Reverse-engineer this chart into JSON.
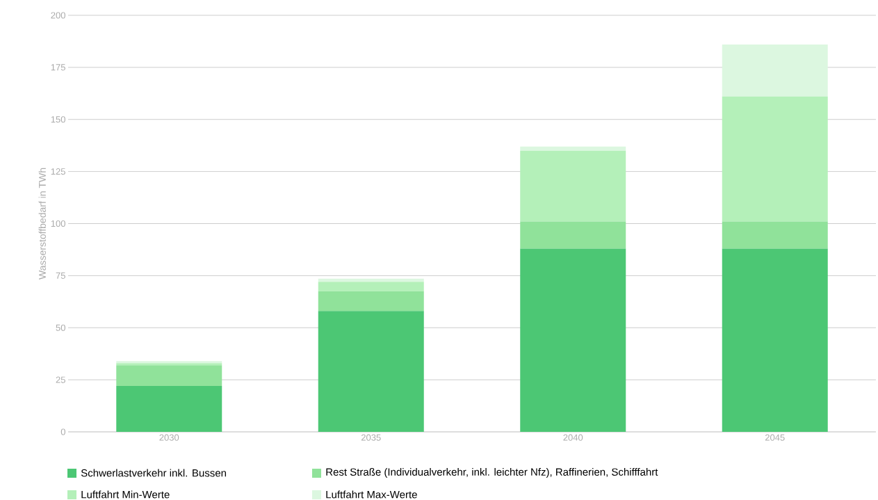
{
  "chart_data": {
    "type": "bar",
    "stacked": true,
    "ylabel": "Wasserstoffbedarf in TWh",
    "categories": [
      "2030",
      "2035",
      "2040",
      "2045"
    ],
    "series": [
      {
        "name": "Schwerlastverkehr inkl. Bussen",
        "color": "#4cc774",
        "values": [
          22,
          58,
          88,
          88
        ]
      },
      {
        "name": "Rest Straße (Individualverkehr, inkl. leichter Nfz), Raffinerien, Schifffahrt",
        "color": "#90e29a",
        "values": [
          10,
          9.5,
          13,
          13
        ]
      },
      {
        "name": "Luftfahrt Min-Werte",
        "color": "#b4f0b9",
        "values": [
          1,
          4.5,
          34,
          60
        ]
      },
      {
        "name": "Luftfahrt Max-Werte",
        "color": "#dcf7e0",
        "values": [
          1,
          1.5,
          2,
          25
        ]
      }
    ],
    "ylim": [
      0,
      200
    ],
    "yticks": [
      0,
      25,
      50,
      75,
      100,
      125,
      150,
      175,
      200
    ],
    "grid": "y",
    "legend": "bottom"
  }
}
